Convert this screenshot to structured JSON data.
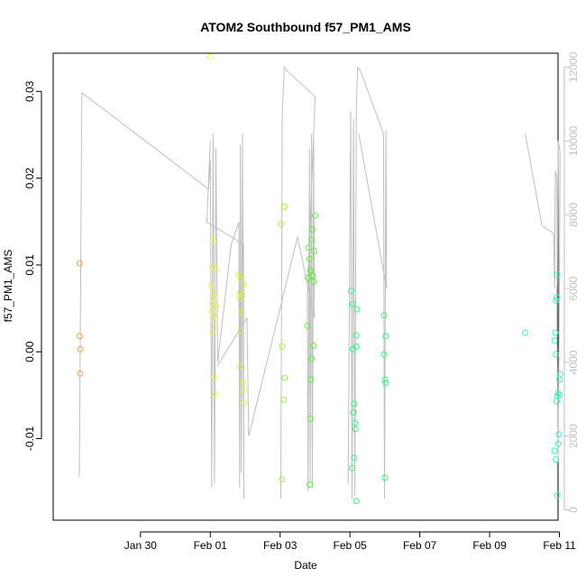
{
  "chart_data": {
    "type": "scatter",
    "title": "ATOM2 Southbound f57_PM1_AMS",
    "xlabel": "Date",
    "ylabel": "f57_PM1_AMS",
    "x_unit": "days since Jan 28",
    "xlim": [
      -0.5,
      13.96
    ],
    "ylim": [
      -0.0194,
      0.0344
    ],
    "y2lim": [
      -280,
      12380
    ],
    "x_ticks": [
      {
        "value": 2,
        "label": "Jan 30"
      },
      {
        "value": 4,
        "label": "Feb 01"
      },
      {
        "value": 6,
        "label": "Feb 03"
      },
      {
        "value": 8,
        "label": "Feb 05"
      },
      {
        "value": 10,
        "label": "Feb 07"
      },
      {
        "value": 12,
        "label": "Feb 09"
      },
      {
        "value": 14,
        "label": "Feb 11"
      }
    ],
    "y_ticks": [
      {
        "value": -0.01,
        "label": "-0.01"
      },
      {
        "value": 0.0,
        "label": "0.00"
      },
      {
        "value": 0.01,
        "label": "0.01"
      },
      {
        "value": 0.02,
        "label": "0.02"
      },
      {
        "value": 0.03,
        "label": "0.03"
      }
    ],
    "y2_ticks": [
      {
        "value": 0,
        "label": "0"
      },
      {
        "value": 2000,
        "label": "2000"
      },
      {
        "value": 4000,
        "label": "4000"
      },
      {
        "value": 6000,
        "label": "6000"
      },
      {
        "value": 8000,
        "label": "8000"
      },
      {
        "value": 10000,
        "label": "10000"
      },
      {
        "value": 12000,
        "label": "12000"
      }
    ],
    "colors": {
      "line": "#bebebe",
      "axis": "#000000",
      "right_axis": "#bebebe",
      "groups": [
        "#f0a050",
        "#eef05a",
        "#d8f040",
        "#a0f040",
        "#60f040",
        "#40f080",
        "#40f0c0"
      ]
    },
    "points": [
      {
        "x": 0.26,
        "y": 0.0102,
        "c": 0
      },
      {
        "x": 0.26,
        "y": 0.0018,
        "c": 0
      },
      {
        "x": 0.28,
        "y": 0.0003,
        "c": 0
      },
      {
        "x": 0.27,
        "y": -0.0025,
        "c": 0
      },
      {
        "x": 4.0,
        "y": 0.034,
        "c": 1
      },
      {
        "x": 4.08,
        "y": 0.0128,
        "c": 1
      },
      {
        "x": 4.05,
        "y": 0.0098,
        "c": 1
      },
      {
        "x": 4.18,
        "y": 0.0095,
        "c": 1
      },
      {
        "x": 4.02,
        "y": 0.0077,
        "c": 1
      },
      {
        "x": 4.1,
        "y": 0.0069,
        "c": 1
      },
      {
        "x": 4.12,
        "y": 0.0062,
        "c": 1
      },
      {
        "x": 4.06,
        "y": 0.0055,
        "c": 1
      },
      {
        "x": 4.15,
        "y": 0.0052,
        "c": 1
      },
      {
        "x": 4.02,
        "y": 0.0046,
        "c": 1
      },
      {
        "x": 4.09,
        "y": 0.0042,
        "c": 1
      },
      {
        "x": 4.14,
        "y": 0.0035,
        "c": 1
      },
      {
        "x": 4.05,
        "y": 0.0023,
        "c": 1
      },
      {
        "x": 4.12,
        "y": -0.0029,
        "c": 1
      },
      {
        "x": 4.15,
        "y": -0.0049,
        "c": 1
      },
      {
        "x": 4.82,
        "y": 0.0089,
        "c": 2
      },
      {
        "x": 4.88,
        "y": 0.0084,
        "c": 2
      },
      {
        "x": 4.95,
        "y": 0.0078,
        "c": 2
      },
      {
        "x": 4.86,
        "y": 0.0068,
        "c": 2
      },
      {
        "x": 4.92,
        "y": 0.0065,
        "c": 2
      },
      {
        "x": 4.84,
        "y": 0.0061,
        "c": 2
      },
      {
        "x": 4.9,
        "y": 0.0045,
        "c": 2
      },
      {
        "x": 4.87,
        "y": 0.0025,
        "c": 2
      },
      {
        "x": 4.85,
        "y": -0.0017,
        "c": 2
      },
      {
        "x": 4.93,
        "y": -0.0036,
        "c": 2
      },
      {
        "x": 4.95,
        "y": -0.0045,
        "c": 2
      },
      {
        "x": 4.97,
        "y": -0.0059,
        "c": 2
      },
      {
        "x": 6.03,
        "y": 0.0147,
        "c": 3
      },
      {
        "x": 6.12,
        "y": 0.0167,
        "c": 3
      },
      {
        "x": 6.06,
        "y": 0.0006,
        "c": 3
      },
      {
        "x": 6.13,
        "y": -0.003,
        "c": 3
      },
      {
        "x": 6.1,
        "y": -0.0055,
        "c": 3
      },
      {
        "x": 6.05,
        "y": -0.0147,
        "c": 3
      },
      {
        "x": 7.0,
        "y": 0.0157,
        "c": 4
      },
      {
        "x": 6.92,
        "y": 0.0141,
        "c": 4
      },
      {
        "x": 6.9,
        "y": 0.0129,
        "c": 4
      },
      {
        "x": 6.82,
        "y": 0.012,
        "c": 4
      },
      {
        "x": 6.98,
        "y": 0.0116,
        "c": 4
      },
      {
        "x": 6.84,
        "y": 0.0107,
        "c": 4
      },
      {
        "x": 6.86,
        "y": 0.0094,
        "c": 4
      },
      {
        "x": 6.94,
        "y": 0.0088,
        "c": 4
      },
      {
        "x": 6.8,
        "y": 0.0085,
        "c": 4
      },
      {
        "x": 6.96,
        "y": 0.0081,
        "c": 4
      },
      {
        "x": 6.78,
        "y": 0.003,
        "c": 4
      },
      {
        "x": 6.95,
        "y": 0.0007,
        "c": 4
      },
      {
        "x": 6.9,
        "y": -0.0008,
        "c": 4
      },
      {
        "x": 6.88,
        "y": -0.0032,
        "c": 4
      },
      {
        "x": 6.87,
        "y": -0.0077,
        "c": 4
      },
      {
        "x": 6.85,
        "y": -0.0153,
        "c": 4
      },
      {
        "x": 8.04,
        "y": 0.007,
        "c": 5
      },
      {
        "x": 8.08,
        "y": 0.0055,
        "c": 5
      },
      {
        "x": 8.2,
        "y": 0.0049,
        "c": 5
      },
      {
        "x": 8.18,
        "y": 0.0019,
        "c": 5
      },
      {
        "x": 8.08,
        "y": 0.0003,
        "c": 5
      },
      {
        "x": 8.18,
        "y": 0.0006,
        "c": 5
      },
      {
        "x": 8.12,
        "y": -0.006,
        "c": 5
      },
      {
        "x": 8.1,
        "y": -0.007,
        "c": 5
      },
      {
        "x": 8.14,
        "y": -0.0082,
        "c": 5
      },
      {
        "x": 8.16,
        "y": -0.0089,
        "c": 5
      },
      {
        "x": 8.12,
        "y": -0.0122,
        "c": 5
      },
      {
        "x": 8.06,
        "y": -0.0134,
        "c": 5
      },
      {
        "x": 8.18,
        "y": -0.0172,
        "c": 5
      },
      {
        "x": 8.98,
        "y": 0.0042,
        "c": 5
      },
      {
        "x": 9.02,
        "y": 0.0018,
        "c": 5
      },
      {
        "x": 8.98,
        "y": -0.0003,
        "c": 5
      },
      {
        "x": 9.0,
        "y": -0.0032,
        "c": 5
      },
      {
        "x": 9.02,
        "y": -0.0036,
        "c": 5
      },
      {
        "x": 9.0,
        "y": -0.0145,
        "c": 5
      },
      {
        "x": 13.02,
        "y": 0.0022,
        "c": 6
      },
      {
        "x": 13.94,
        "y": 0.0089,
        "c": 6
      },
      {
        "x": 13.92,
        "y": 0.0063,
        "c": 6
      },
      {
        "x": 13.9,
        "y": 0.0059,
        "c": 6
      },
      {
        "x": 13.88,
        "y": 0.0022,
        "c": 6
      },
      {
        "x": 13.86,
        "y": 0.0013,
        "c": 6
      },
      {
        "x": 13.9,
        "y": -0.0003,
        "c": 6
      },
      {
        "x": 14.02,
        "y": -0.0026,
        "c": 6
      },
      {
        "x": 14.0,
        "y": -0.0032,
        "c": 6
      },
      {
        "x": 13.96,
        "y": -0.0048,
        "c": 6
      },
      {
        "x": 14.0,
        "y": -0.005,
        "c": 6
      },
      {
        "x": 13.94,
        "y": -0.0051,
        "c": 6
      },
      {
        "x": 13.92,
        "y": -0.0057,
        "c": 6
      },
      {
        "x": 13.98,
        "y": -0.0095,
        "c": 6
      },
      {
        "x": 13.96,
        "y": -0.0106,
        "c": 6
      },
      {
        "x": 13.86,
        "y": -0.0114,
        "c": 6
      },
      {
        "x": 13.9,
        "y": -0.0124,
        "c": 6
      },
      {
        "x": 13.94,
        "y": -0.0165,
        "c": 6
      }
    ],
    "line_y2_segments": [
      [
        [
          0.25,
          900
        ],
        [
          0.32,
          11300
        ],
        [
          0.36,
          11280
        ],
        [
          3.95,
          8700
        ],
        [
          4.0,
          9500
        ],
        [
          4.04,
          600
        ],
        [
          4.08,
          10200
        ],
        [
          4.12,
          700
        ],
        [
          4.16,
          9800
        ],
        [
          4.21,
          4000
        ],
        [
          4.6,
          7200
        ],
        [
          4.82,
          7800
        ],
        [
          4.84,
          600
        ],
        [
          4.86,
          9900
        ],
        [
          4.89,
          1000
        ],
        [
          4.92,
          10200
        ],
        [
          4.96,
          300
        ],
        [
          4.95,
          7200
        ],
        [
          3.9,
          7800
        ],
        [
          4.0,
          10000
        ]
      ],
      [
        [
          6.02,
          300
        ],
        [
          6.06,
          10800
        ],
        [
          6.12,
          12000
        ],
        [
          6.2,
          11900
        ],
        [
          7.0,
          11200
        ],
        [
          6.78,
          5800
        ],
        [
          6.8,
          500
        ],
        [
          6.84,
          9800
        ],
        [
          6.86,
          700
        ],
        [
          6.9,
          10200
        ],
        [
          6.92,
          600
        ],
        [
          6.96,
          10000
        ],
        [
          6.98,
          5200
        ],
        [
          6.5,
          7400
        ],
        [
          5.1,
          2000
        ],
        [
          5.05,
          5200
        ],
        [
          4.2,
          3900
        ]
      ],
      [
        [
          7.95,
          700
        ],
        [
          8.02,
          10800
        ],
        [
          8.06,
          300
        ],
        [
          8.1,
          10600
        ],
        [
          8.14,
          400
        ],
        [
          8.18,
          10900
        ],
        [
          8.22,
          12000
        ],
        [
          8.3,
          11900
        ],
        [
          8.96,
          10200
        ],
        [
          8.99,
          300
        ],
        [
          9.03,
          10300
        ],
        [
          9.05,
          6000
        ],
        [
          8.25,
          10200
        ]
      ],
      [
        [
          13.02,
          10200
        ],
        [
          13.5,
          7700
        ],
        [
          13.83,
          7500
        ],
        [
          13.86,
          6000
        ],
        [
          13.88,
          9200
        ],
        [
          13.92,
          9000
        ],
        [
          13.94,
          6000
        ],
        [
          13.96,
          10000
        ],
        [
          14.02,
          9700
        ],
        [
          14.0,
          6100
        ],
        [
          13.96,
          1300
        ],
        [
          13.92,
          6100
        ]
      ]
    ]
  }
}
